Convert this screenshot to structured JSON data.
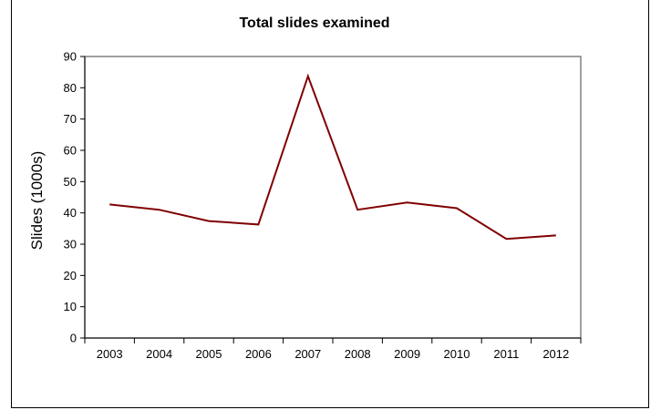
{
  "chart_data": {
    "type": "line",
    "title": "Total slides examined",
    "xlabel": "",
    "ylabel": "Slides (1000s)",
    "categories": [
      "2003",
      "2004",
      "2005",
      "2006",
      "2007",
      "2008",
      "2009",
      "2010",
      "2011",
      "2012"
    ],
    "series": [
      {
        "values": [
          42.7,
          41.0,
          37.4,
          36.3,
          83.7,
          41.0,
          43.3,
          41.5,
          31.7,
          32.8
        ],
        "color": "#800000"
      }
    ],
    "ylim": [
      0,
      90
    ],
    "yticks": [
      "0",
      "10",
      "20",
      "30",
      "40",
      "50",
      "60",
      "70",
      "80",
      "90"
    ],
    "grid": false,
    "plot_border_color": "#808080"
  }
}
